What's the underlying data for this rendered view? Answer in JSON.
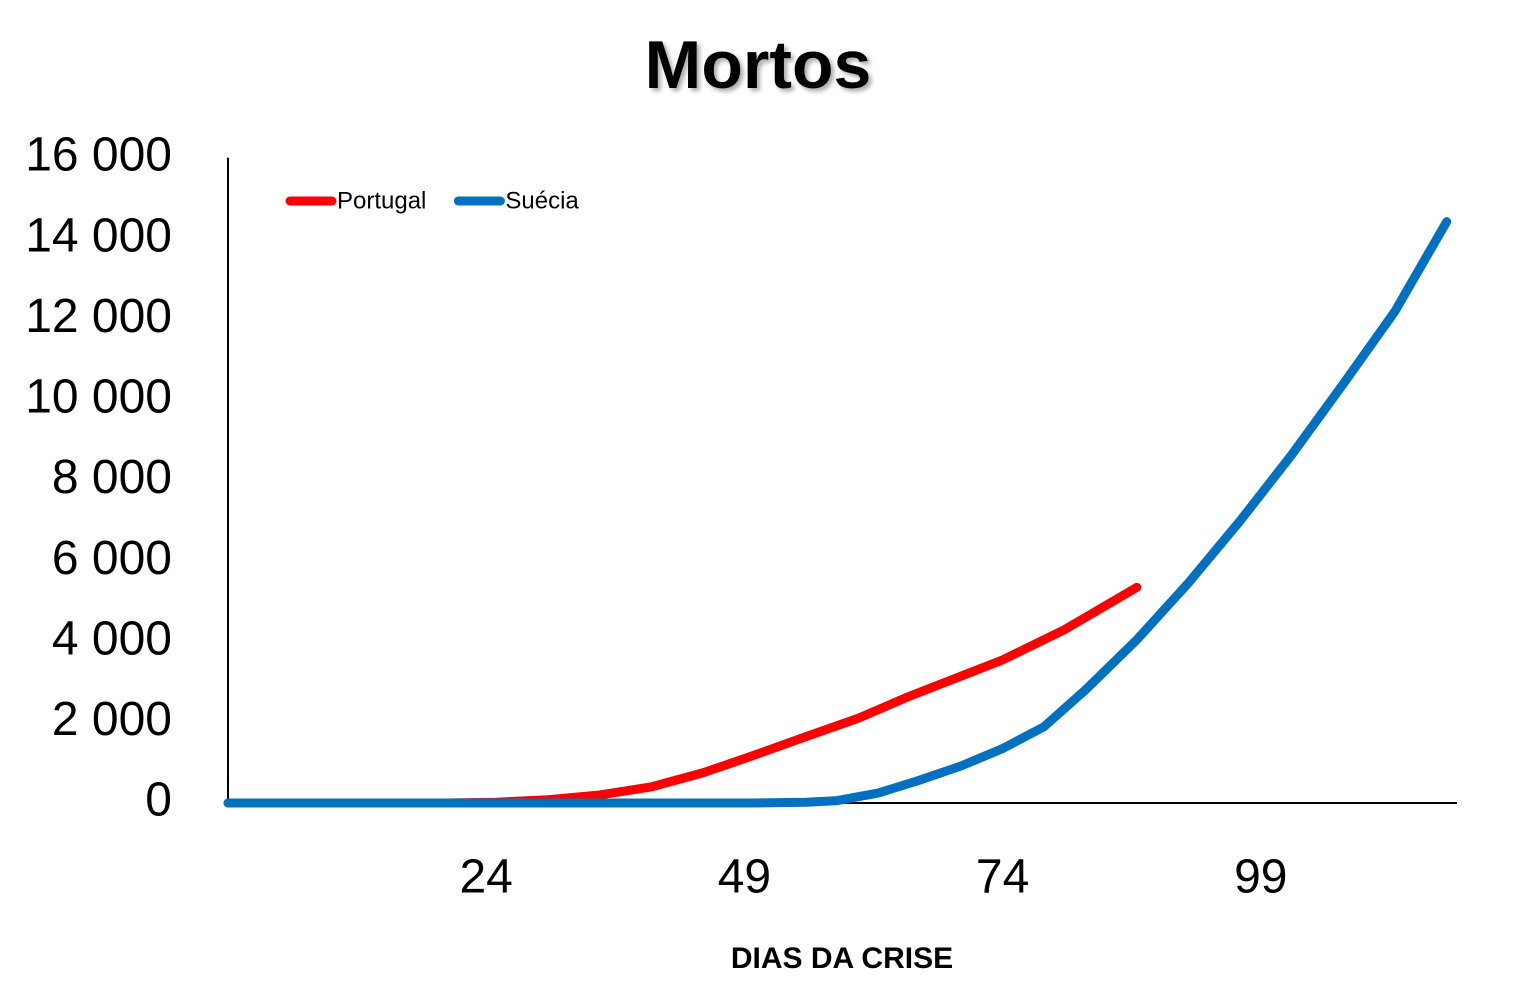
{
  "chart_data": {
    "type": "line",
    "title": "Mortos",
    "x_label": "DIAS DA CRISE",
    "xlim": [
      -1,
      118
    ],
    "xticks": [
      24,
      49,
      74,
      99
    ],
    "ylim": [
      0,
      16000
    ],
    "yticks": [
      {
        "value": 0,
        "label": "0"
      },
      {
        "value": 2000,
        "label": "2 000"
      },
      {
        "value": 4000,
        "label": "4 000"
      },
      {
        "value": 6000,
        "label": "6 000"
      },
      {
        "value": 8000,
        "label": "8 000"
      },
      {
        "value": 10000,
        "label": "10 000"
      },
      {
        "value": 12000,
        "label": "12 000"
      },
      {
        "value": 14000,
        "label": "14 000"
      },
      {
        "value": 16000,
        "label": "16 000"
      }
    ],
    "grid": false,
    "legend": "top-left",
    "series": [
      {
        "name": "Portugal",
        "color": "#ff0000",
        "x": [
          -1,
          10,
          20,
          25,
          30,
          35,
          40,
          45,
          49,
          55,
          60,
          65,
          70,
          74,
          80,
          87
        ],
        "values": [
          0,
          0,
          0,
          20,
          80,
          200,
          400,
          750,
          1100,
          1650,
          2100,
          2650,
          3150,
          3550,
          4300,
          5350
        ]
      },
      {
        "name": "Suécia",
        "color": "#0070c0",
        "x": [
          -1,
          20,
          40,
          50,
          55,
          58,
          62,
          66,
          70,
          74,
          78,
          82,
          87,
          92,
          97,
          102,
          107,
          112,
          117
        ],
        "values": [
          0,
          0,
          0,
          0,
          20,
          60,
          250,
          570,
          920,
          1350,
          1890,
          2800,
          4050,
          5460,
          7000,
          8640,
          10400,
          12200,
          14420
        ]
      }
    ]
  }
}
